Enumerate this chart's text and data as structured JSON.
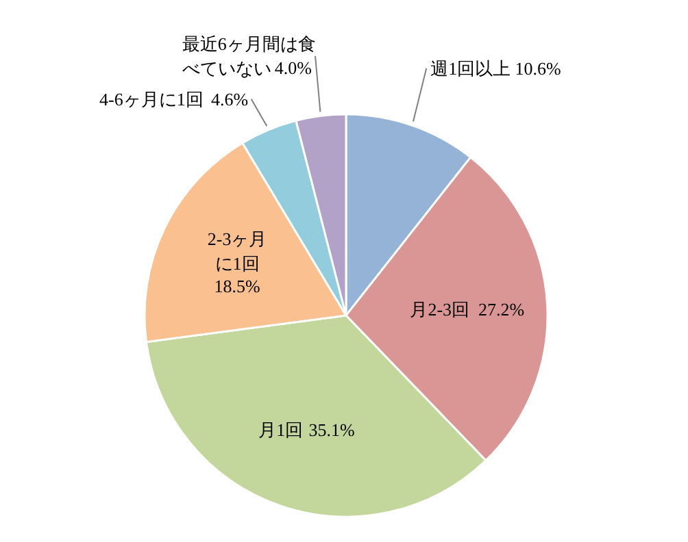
{
  "chart_data": {
    "type": "pie",
    "categories": [
      "週1回以上",
      "月2-3回",
      "月1回",
      "2-3ヶ月に1回",
      "4-6ヶ月に1回",
      "最近6ヶ月間は食べていない"
    ],
    "values": [
      10.6,
      27.2,
      35.1,
      18.5,
      4.6,
      4.0
    ],
    "colors": [
      "#95b3d7",
      "#d99694",
      "#c3d69b",
      "#fac090",
      "#93cddd",
      "#b3a2c7"
    ],
    "value_labels": [
      "10.6%",
      "27.2%",
      "35.1%",
      "18.5%",
      "4.6%",
      "4.0%"
    ]
  }
}
